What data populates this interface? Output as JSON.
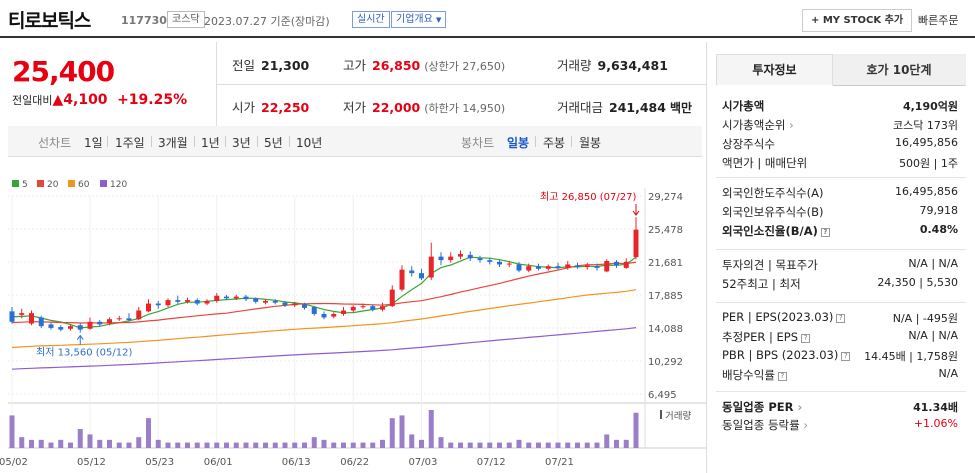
{
  "header": {
    "stock_name": "티로보틱스",
    "stock_code": "117730",
    "market_badge": "코스닥",
    "datetime": "2023.07.27 기준(장마감)",
    "realtime_badge": "실시간",
    "company_info_label": "기업개요",
    "my_stock_button": "+ MY STOCK 추가",
    "quick_order_link": "빠른주문"
  },
  "summary": {
    "current_price": "25,400",
    "change_label": "전일대비",
    "change_arrow": "▲",
    "change_value": "4,100",
    "change_percent": "+19.25%"
  },
  "quotes": {
    "prev_close_label": "전일",
    "prev_close": "21,300",
    "high_label": "고가",
    "high": "26,850",
    "upper_limit": "(상한가 27,650)",
    "volume_label": "거래량",
    "volume": "9,634,481",
    "open_label": "시가",
    "open": "22,250",
    "low_label": "저가",
    "low": "22,000",
    "lower_limit": "(하한가 14,950)",
    "amount_label": "거래대금",
    "amount": "241,484",
    "amount_unit": "백만"
  },
  "period_tabs": {
    "line_chart": "선차트",
    "items": [
      "1일",
      "1주일",
      "3개월",
      "1년",
      "3년",
      "5년",
      "10년"
    ],
    "candle_chart": "봉차트",
    "candle_items": [
      "일봉",
      "주봉",
      "월봉"
    ],
    "active_candle": "일봉"
  },
  "legend": [
    {
      "label": "5",
      "color": "#35a635"
    },
    {
      "label": "20",
      "color": "#e8463a"
    },
    {
      "label": "60",
      "color": "#f29520"
    },
    {
      "label": "120",
      "color": "#8e5bd6"
    }
  ],
  "chart_data": {
    "type": "candlestick",
    "price_axis_ticks": [
      "29,274",
      "25,478",
      "21,681",
      "17,885",
      "14,088",
      "10,292",
      "6,495"
    ],
    "x_tick_labels": [
      "05/02",
      "05/12",
      "05/23",
      "06/01",
      "06/13",
      "06/22",
      "07/03",
      "07/12",
      "07/21"
    ],
    "volume_label": "거래량",
    "annotation_high": "최고 26,850 (07/27)",
    "annotation_low": "최저 13,560 (05/12)",
    "candles": [
      {
        "o": 16000,
        "c": 14800,
        "h": 16500,
        "l": 14600
      },
      {
        "o": 15600,
        "c": 15800,
        "h": 16300,
        "l": 15200
      },
      {
        "o": 14600,
        "c": 15800,
        "h": 16100,
        "l": 14400
      },
      {
        "o": 15300,
        "c": 14300,
        "h": 15500,
        "l": 14100
      },
      {
        "o": 14500,
        "c": 14100,
        "h": 14700,
        "l": 13900
      },
      {
        "o": 14200,
        "c": 13900,
        "h": 14400,
        "l": 13700
      },
      {
        "o": 14000,
        "c": 14300,
        "h": 14500,
        "l": 13800
      },
      {
        "o": 14400,
        "c": 13900,
        "h": 14600,
        "l": 13560
      },
      {
        "o": 14000,
        "c": 14800,
        "h": 15300,
        "l": 13900
      },
      {
        "o": 14800,
        "c": 14500,
        "h": 15000,
        "l": 14300
      },
      {
        "o": 14600,
        "c": 15100,
        "h": 15300,
        "l": 14400
      },
      {
        "o": 15100,
        "c": 15200,
        "h": 15500,
        "l": 14900
      },
      {
        "o": 15200,
        "c": 15000,
        "h": 15800,
        "l": 14800
      },
      {
        "o": 15100,
        "c": 16100,
        "h": 16500,
        "l": 15000
      },
      {
        "o": 16000,
        "c": 16900,
        "h": 17400,
        "l": 15900
      },
      {
        "o": 16900,
        "c": 16700,
        "h": 17200,
        "l": 16300
      },
      {
        "o": 16700,
        "c": 17300,
        "h": 17500,
        "l": 16500
      },
      {
        "o": 17300,
        "c": 17100,
        "h": 17800,
        "l": 16900
      },
      {
        "o": 17100,
        "c": 17300,
        "h": 17600,
        "l": 16900
      },
      {
        "o": 17300,
        "c": 16900,
        "h": 17500,
        "l": 16700
      },
      {
        "o": 16900,
        "c": 17200,
        "h": 17400,
        "l": 16700
      },
      {
        "o": 17200,
        "c": 17800,
        "h": 18100,
        "l": 17000
      },
      {
        "o": 17700,
        "c": 17500,
        "h": 17900,
        "l": 17300
      },
      {
        "o": 17500,
        "c": 17700,
        "h": 17900,
        "l": 17300
      },
      {
        "o": 17700,
        "c": 17400,
        "h": 17900,
        "l": 17200
      },
      {
        "o": 17500,
        "c": 17100,
        "h": 17600,
        "l": 16900
      },
      {
        "o": 17000,
        "c": 17200,
        "h": 17400,
        "l": 16800
      },
      {
        "o": 17200,
        "c": 17000,
        "h": 17400,
        "l": 16800
      },
      {
        "o": 17000,
        "c": 16700,
        "h": 17200,
        "l": 16500
      },
      {
        "o": 16700,
        "c": 16900,
        "h": 17100,
        "l": 16500
      },
      {
        "o": 16800,
        "c": 16400,
        "h": 17000,
        "l": 16200
      },
      {
        "o": 16500,
        "c": 15700,
        "h": 16600,
        "l": 15500
      },
      {
        "o": 15700,
        "c": 15300,
        "h": 16000,
        "l": 15100
      },
      {
        "o": 15400,
        "c": 15700,
        "h": 15900,
        "l": 15200
      },
      {
        "o": 15700,
        "c": 16100,
        "h": 16500,
        "l": 15500
      },
      {
        "o": 16100,
        "c": 16500,
        "h": 16700,
        "l": 15900
      },
      {
        "o": 16500,
        "c": 16600,
        "h": 16900,
        "l": 16300
      },
      {
        "o": 16600,
        "c": 16200,
        "h": 16800,
        "l": 16000
      },
      {
        "o": 16200,
        "c": 16600,
        "h": 17000,
        "l": 16000
      },
      {
        "o": 16600,
        "c": 18500,
        "h": 19000,
        "l": 16500
      },
      {
        "o": 18500,
        "c": 20800,
        "h": 21300,
        "l": 18300
      },
      {
        "o": 20700,
        "c": 20400,
        "h": 21200,
        "l": 20000
      },
      {
        "o": 20400,
        "c": 19800,
        "h": 20900,
        "l": 19600
      },
      {
        "o": 19900,
        "c": 22300,
        "h": 23900,
        "l": 19600
      },
      {
        "o": 22300,
        "c": 21900,
        "h": 22800,
        "l": 21300
      },
      {
        "o": 21900,
        "c": 22300,
        "h": 22800,
        "l": 21600
      },
      {
        "o": 22300,
        "c": 22600,
        "h": 23000,
        "l": 22000
      },
      {
        "o": 22500,
        "c": 22100,
        "h": 22900,
        "l": 21800
      },
      {
        "o": 22100,
        "c": 21900,
        "h": 22400,
        "l": 21600
      },
      {
        "o": 21900,
        "c": 21700,
        "h": 22200,
        "l": 21400
      },
      {
        "o": 21700,
        "c": 21400,
        "h": 21900,
        "l": 21100
      },
      {
        "o": 21400,
        "c": 21500,
        "h": 21800,
        "l": 21100
      },
      {
        "o": 21400,
        "c": 20700,
        "h": 21700,
        "l": 20500
      },
      {
        "o": 20700,
        "c": 21200,
        "h": 21500,
        "l": 20500
      },
      {
        "o": 21200,
        "c": 20900,
        "h": 21500,
        "l": 20700
      },
      {
        "o": 20900,
        "c": 21200,
        "h": 21400,
        "l": 20700
      },
      {
        "o": 21200,
        "c": 21000,
        "h": 21600,
        "l": 20800
      },
      {
        "o": 21000,
        "c": 21400,
        "h": 21800,
        "l": 20800
      },
      {
        "o": 21300,
        "c": 21100,
        "h": 21600,
        "l": 20900
      },
      {
        "o": 21100,
        "c": 21300,
        "h": 21600,
        "l": 20800
      },
      {
        "o": 21200,
        "c": 21000,
        "h": 21500,
        "l": 20700
      },
      {
        "o": 20600,
        "c": 21800,
        "h": 22000,
        "l": 20500
      },
      {
        "o": 21700,
        "c": 21300,
        "h": 21900,
        "l": 21000
      },
      {
        "o": 21000,
        "c": 21700,
        "h": 22100,
        "l": 20900
      },
      {
        "o": 22250,
        "c": 25400,
        "h": 26850,
        "l": 22000
      }
    ],
    "volumes": [
      1.2,
      0.4,
      0.3,
      0.3,
      0.2,
      0.3,
      0.2,
      0.7,
      0.5,
      0.3,
      0.3,
      0.2,
      0.2,
      0.4,
      1.1,
      0.3,
      0.2,
      0.2,
      0.2,
      0.2,
      0.2,
      0.2,
      0.2,
      0.2,
      0.2,
      0.2,
      0.2,
      0.2,
      0.2,
      0.2,
      0.2,
      0.4,
      0.3,
      0.2,
      0.2,
      0.2,
      0.2,
      0.2,
      0.3,
      1.1,
      1.2,
      0.5,
      0.3,
      1.4,
      0.4,
      0.2,
      0.2,
      0.2,
      0.2,
      0.2,
      0.2,
      0.2,
      0.3,
      0.2,
      0.2,
      0.2,
      0.2,
      0.2,
      0.2,
      0.2,
      0.2,
      0.5,
      0.3,
      0.3,
      1.3
    ]
  },
  "panel": {
    "tab_info": "투자정보",
    "tab_orderbook": "호가 10단계",
    "rows1": [
      {
        "k": "시가총액",
        "v": "4,190억원",
        "bold": true
      },
      {
        "k": "시가총액순위",
        "v": "코스닥 173위",
        "arrow": true
      },
      {
        "k": "상장주식수",
        "v": "16,495,856"
      },
      {
        "k": "액면가 | 매매단위",
        "v": "500원 | 1주"
      }
    ],
    "rows2": [
      {
        "k": "외국인한도주식수(A)",
        "v": "16,495,856"
      },
      {
        "k": "외국인보유주식수(B)",
        "v": "79,918"
      },
      {
        "k": "외국인소진율(B/A)",
        "v": "0.48%",
        "bold": true,
        "q": true
      }
    ],
    "rows3": [
      {
        "k": "투자의견 | 목표주가",
        "v": "N/A | N/A"
      },
      {
        "k": "52주최고 | 최저",
        "v": "24,350 | 5,530"
      }
    ],
    "rows4": [
      {
        "k": "PER | EPS(2023.03)",
        "v": "N/A | -495원",
        "q": true
      },
      {
        "k": "추정PER | EPS",
        "v": "N/A | N/A",
        "q": true
      },
      {
        "k": "PBR | BPS (2023.03)",
        "v": "14.45배 | 1,758원",
        "q": true
      },
      {
        "k": "배당수익률",
        "v": "N/A",
        "q": true
      }
    ],
    "rows5": [
      {
        "k": "동일업종 PER",
        "v": "41.34배",
        "bold": true,
        "arrow": true
      },
      {
        "k": "동일업종 등락률",
        "v": "+1.06%",
        "red": true,
        "arrow": true
      }
    ]
  }
}
